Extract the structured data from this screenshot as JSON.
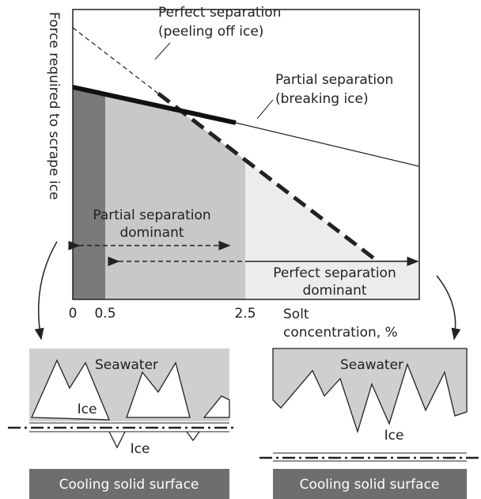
{
  "chart": {
    "y_axis_label": "Force required to scrape ice",
    "x_axis_label": [
      "Solt",
      "concentration, %"
    ],
    "x_ticks": [
      "0",
      "0.5",
      "2.5"
    ],
    "perfect_line_label": [
      "Perfect separation",
      "(peeling off ice)"
    ],
    "partial_line_label": [
      "Partial separation",
      "(breaking ice)"
    ],
    "partial_dominant": [
      "Partial separation",
      "dominant"
    ],
    "perfect_dominant": [
      "Perfect separation",
      "dominant"
    ]
  },
  "left_panel": {
    "top": "Seawater",
    "ice_upper": "Ice",
    "ice_lower": "Ice",
    "bottom": "Cooling solid surface"
  },
  "right_panel": {
    "top": "Seawater",
    "ice": "Ice",
    "bottom": "Cooling solid surface"
  }
}
